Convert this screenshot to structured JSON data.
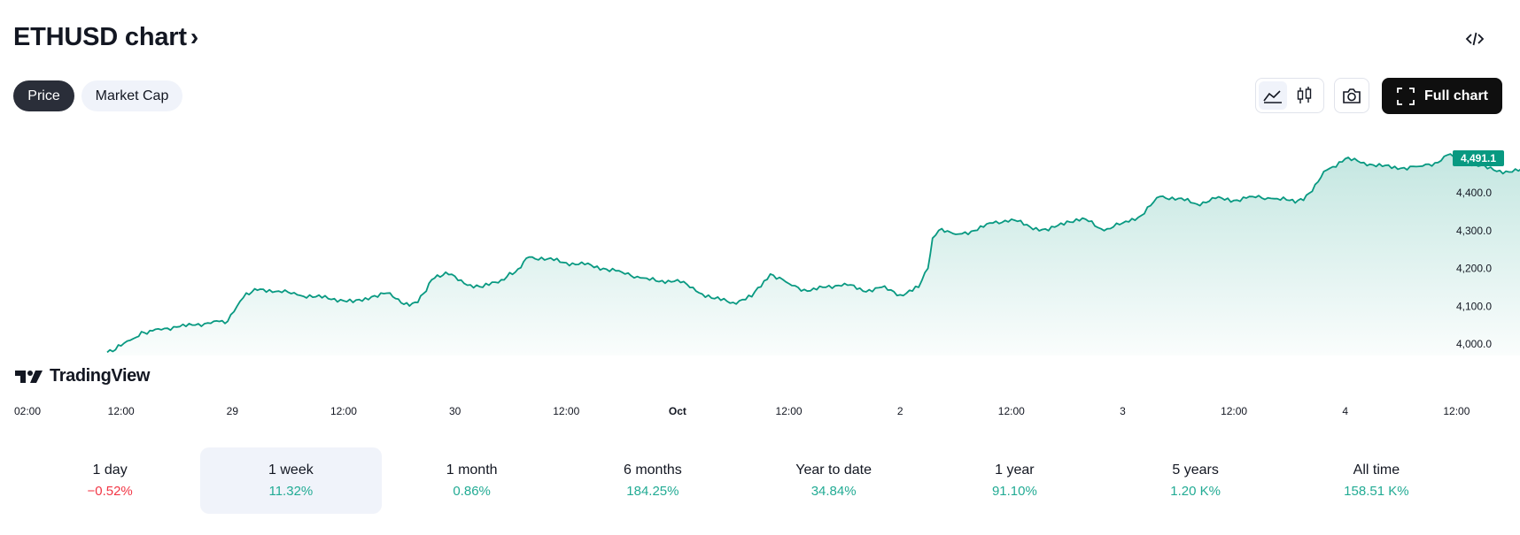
{
  "header": {
    "title": "ETHUSD chart",
    "title_chevron": "›"
  },
  "toolbar": {
    "embed_icon": "code-icon",
    "tabs": [
      {
        "label": "Price",
        "active": true
      },
      {
        "label": "Market Cap",
        "active": false
      }
    ],
    "style_icons": [
      "area-chart-icon",
      "candlestick-icon"
    ],
    "snapshot_icon": "camera-icon",
    "full_chart_label": "Full chart",
    "full_chart_icon": "fullscreen-icon"
  },
  "branding": {
    "logo_text": "TradingView"
  },
  "colors": {
    "line": "#089981",
    "last_badge": "#089981",
    "positive": "#22ab94",
    "negative": "#f23645",
    "selected_bg": "#f0f3fa"
  },
  "chart_data": {
    "type": "area",
    "symbol": "ETHUSD",
    "last_value": 4491.1,
    "last_value_label": "4,491.1",
    "ylim": [
      3970,
      4600
    ],
    "y_ticks": [
      4000,
      4100,
      4200,
      4300,
      4400
    ],
    "y_tick_labels": [
      "4,000.0",
      "4,100.0",
      "4,200.0",
      "4,300.0",
      "4,400.0"
    ],
    "x_tick_labels": [
      "02:00",
      "12:00",
      "29",
      "12:00",
      "30",
      "12:00",
      "Oct",
      "12:00",
      "2",
      "12:00",
      "3",
      "12:00",
      "4",
      "12:00"
    ],
    "x_hours_from_sep28_0200": [
      0,
      10,
      22,
      34,
      46,
      58,
      70,
      82,
      94,
      106,
      118,
      130,
      142,
      154
    ],
    "grid": false,
    "points": [
      [
        8.5,
        3978
      ],
      [
        10,
        3995
      ],
      [
        11,
        4010
      ],
      [
        12.5,
        4030
      ],
      [
        14,
        4040
      ],
      [
        16,
        4045
      ],
      [
        18,
        4050
      ],
      [
        20,
        4060
      ],
      [
        21.5,
        4060
      ],
      [
        22.5,
        4100
      ],
      [
        23.5,
        4135
      ],
      [
        25,
        4145
      ],
      [
        27,
        4140
      ],
      [
        29,
        4130
      ],
      [
        31,
        4125
      ],
      [
        33,
        4120
      ],
      [
        35,
        4110
      ],
      [
        37,
        4125
      ],
      [
        39,
        4135
      ],
      [
        40.5,
        4105
      ],
      [
        42,
        4110
      ],
      [
        43.5,
        4170
      ],
      [
        45,
        4190
      ],
      [
        47,
        4160
      ],
      [
        49,
        4150
      ],
      [
        51,
        4170
      ],
      [
        52.5,
        4190
      ],
      [
        54,
        4230
      ],
      [
        56,
        4225
      ],
      [
        58,
        4215
      ],
      [
        60,
        4210
      ],
      [
        62,
        4200
      ],
      [
        64,
        4190
      ],
      [
        66,
        4175
      ],
      [
        68,
        4165
      ],
      [
        70,
        4170
      ],
      [
        72,
        4140
      ],
      [
        74,
        4120
      ],
      [
        76,
        4110
      ],
      [
        78,
        4125
      ],
      [
        80,
        4185
      ],
      [
        82,
        4160
      ],
      [
        84,
        4140
      ],
      [
        86,
        4150
      ],
      [
        88,
        4160
      ],
      [
        90,
        4140
      ],
      [
        92,
        4150
      ],
      [
        94,
        4130
      ],
      [
        96,
        4150
      ],
      [
        97,
        4200
      ],
      [
        97.5,
        4280
      ],
      [
        98.5,
        4305
      ],
      [
        100,
        4290
      ],
      [
        102,
        4300
      ],
      [
        104,
        4320
      ],
      [
        106,
        4330
      ],
      [
        108,
        4310
      ],
      [
        110,
        4300
      ],
      [
        112,
        4325
      ],
      [
        114,
        4330
      ],
      [
        116,
        4300
      ],
      [
        118,
        4320
      ],
      [
        120,
        4340
      ],
      [
        122,
        4390
      ],
      [
        124,
        4385
      ],
      [
        126,
        4370
      ],
      [
        128,
        4385
      ],
      [
        130,
        4380
      ],
      [
        132,
        4390
      ],
      [
        134,
        4385
      ],
      [
        136,
        4380
      ],
      [
        137.5,
        4380
      ],
      [
        140,
        4460
      ],
      [
        142,
        4490
      ],
      [
        144,
        4480
      ],
      [
        146,
        4470
      ],
      [
        148,
        4465
      ],
      [
        150,
        4470
      ],
      [
        152,
        4480
      ],
      [
        153,
        4500
      ],
      [
        154,
        4490
      ],
      [
        156,
        4475
      ],
      [
        158,
        4460
      ],
      [
        160,
        4455
      ],
      [
        162,
        4465
      ],
      [
        164,
        4475
      ],
      [
        166,
        4490
      ],
      [
        168,
        4470
      ],
      [
        169,
        4460
      ],
      [
        170,
        4480
      ],
      [
        171.5,
        4555
      ],
      [
        172.5,
        4480
      ],
      [
        174,
        4500
      ],
      [
        176,
        4505
      ],
      [
        178,
        4510
      ],
      [
        180,
        4500
      ],
      [
        182,
        4490
      ],
      [
        184,
        4480
      ],
      [
        186,
        4485
      ],
      [
        188,
        4490
      ],
      [
        190,
        4495
      ],
      [
        192,
        4492
      ],
      [
        193.5,
        4491.1
      ]
    ]
  },
  "periods": [
    {
      "label": "1 day",
      "change": "−0.52%",
      "trend": "neg",
      "selected": false
    },
    {
      "label": "1 week",
      "change": "11.32%",
      "trend": "pos",
      "selected": true
    },
    {
      "label": "1 month",
      "change": "0.86%",
      "trend": "pos",
      "selected": false
    },
    {
      "label": "6 months",
      "change": "184.25%",
      "trend": "pos",
      "selected": false
    },
    {
      "label": "Year to date",
      "change": "34.84%",
      "trend": "pos",
      "selected": false
    },
    {
      "label": "1 year",
      "change": "91.10%",
      "trend": "pos",
      "selected": false
    },
    {
      "label": "5 years",
      "change": "1.20 K%",
      "trend": "pos",
      "selected": false
    },
    {
      "label": "All time",
      "change": "158.51 K%",
      "trend": "pos",
      "selected": false
    }
  ]
}
